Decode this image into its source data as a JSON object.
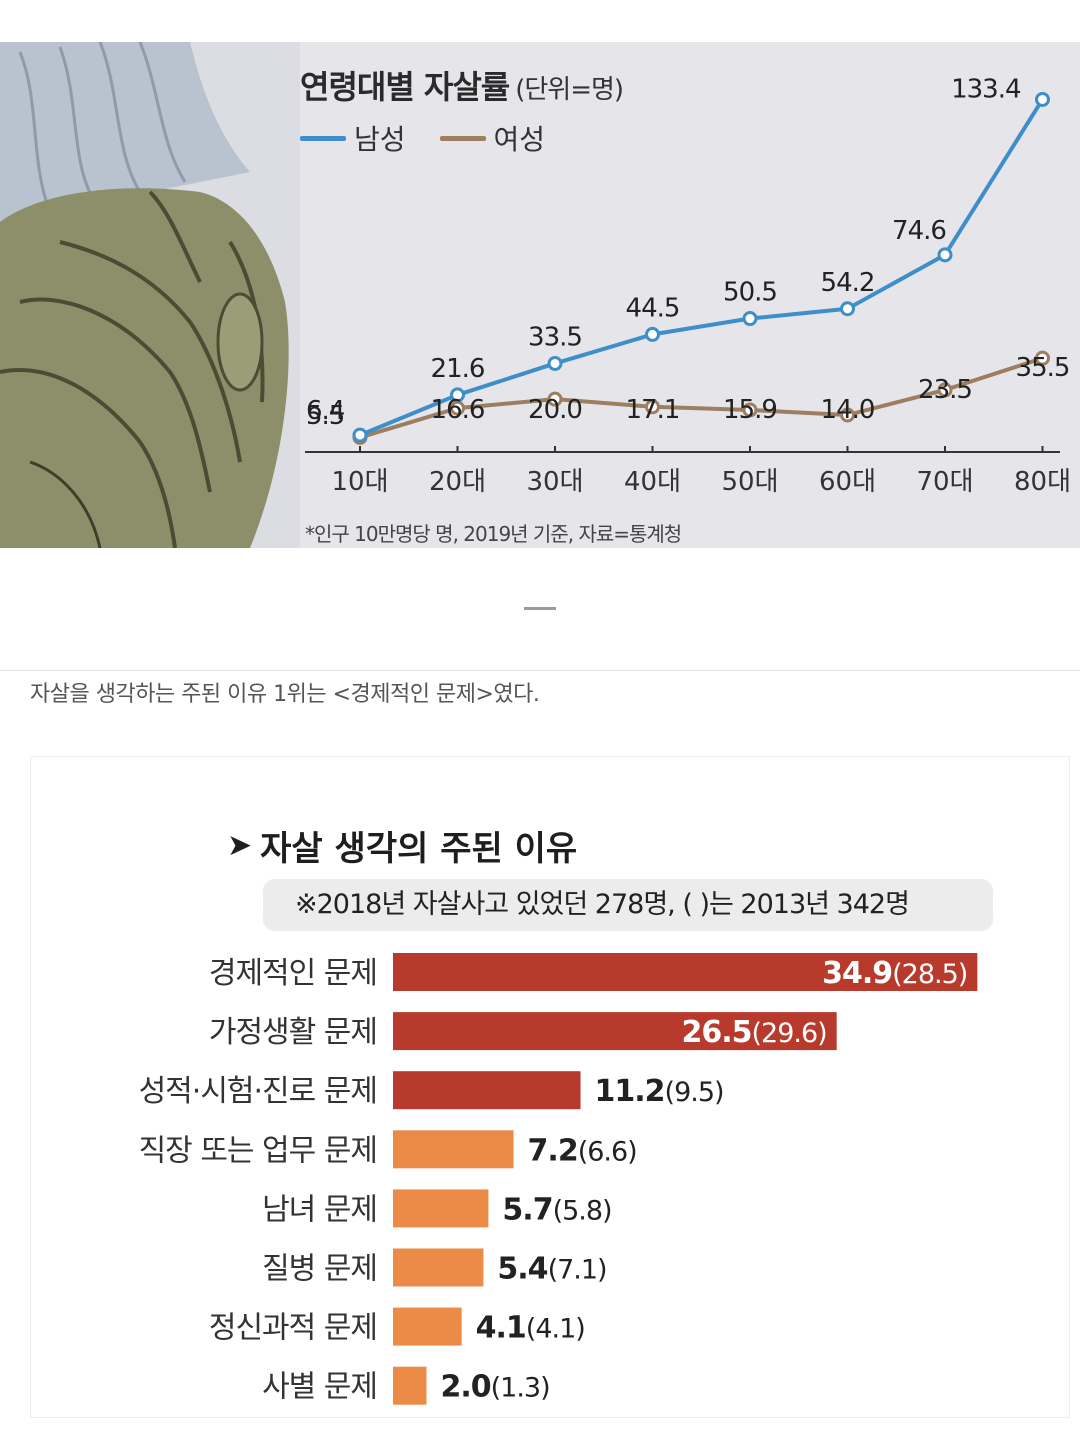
{
  "chart_data": [
    {
      "type": "line",
      "title": "연령대별 자살률",
      "unit_label": "(단위=명)",
      "categories": [
        "10대",
        "20대",
        "30대",
        "40대",
        "50대",
        "60대",
        "70대",
        "80대"
      ],
      "series": [
        {
          "name": "남성",
          "color": "#3e8ec9",
          "values": [
            6.4,
            21.6,
            33.5,
            44.5,
            50.5,
            54.2,
            74.6,
            133.4
          ]
        },
        {
          "name": "여성",
          "color": "#9c7f62",
          "values": [
            5.5,
            16.6,
            20.0,
            17.1,
            15.9,
            14.0,
            23.5,
            35.5
          ]
        }
      ],
      "value_labels": {
        "남성": [
          "6.4",
          "21.6",
          "33.5",
          "44.5",
          "50.5",
          "54.2",
          "74.6",
          "133.4"
        ],
        "여성": [
          "5.5",
          "16.6",
          "20.0",
          "17.1",
          "15.9",
          "14.0",
          "23.5",
          "35.5"
        ]
      },
      "ylim": [
        0,
        140
      ],
      "grid": false,
      "legend": "top-left",
      "note": "*인구 10만명당 명, 2019년 기준, 자료=통계청"
    },
    {
      "type": "bar",
      "orientation": "horizontal",
      "title": "자살 생각의 주된 이유",
      "note": "※2018년 자살사고 있었던 278명, ( )는 2013년 342명",
      "categories": [
        "경제적인 문제",
        "가정생활 문제",
        "성적·시험·진로 문제",
        "직장 또는 업무 문제",
        "남녀 문제",
        "질병 문제",
        "정신과적 문제",
        "사별 문제"
      ],
      "series": [
        {
          "name": "2018년",
          "values": [
            34.9,
            26.5,
            11.2,
            7.2,
            5.7,
            5.4,
            4.1,
            2.0
          ]
        },
        {
          "name": "2013년",
          "values": [
            28.5,
            29.6,
            9.5,
            6.6,
            5.8,
            7.1,
            4.1,
            1.3
          ]
        }
      ],
      "value_labels": [
        "34.9",
        "26.5",
        "11.2",
        "7.2",
        "5.7",
        "5.4",
        "4.1",
        "2.0"
      ],
      "paren_labels": [
        "(28.5)",
        "(29.6)",
        "(9.5)",
        "(6.6)",
        "(5.8)",
        "(7.1)",
        "(4.1)",
        "(1.3)"
      ],
      "bar_colors": [
        "#b83a2c",
        "#b83a2c",
        "#b83a2c",
        "#ec8a47",
        "#ec8a47",
        "#ec8a47",
        "#ec8a47",
        "#ec8a47"
      ],
      "xlim": [
        0,
        35
      ]
    }
  ],
  "caption": "자살을 생각하는 주된 이유 1위는 <경제적인 문제>였다."
}
